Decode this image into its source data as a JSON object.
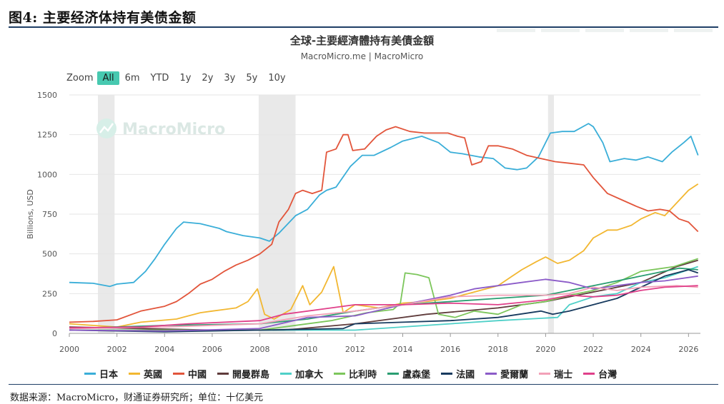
{
  "figure": {
    "title": "图4: 主要经济体持有美债金额",
    "source": "数据来源：MacroMicro，财通证券研究所；单位：十亿美元"
  },
  "chart_header": {
    "title": "全球-主要經濟體持有美債金額",
    "subtitle": "MacroMicro.me | MacroMicro",
    "watermark": "MacroMicro"
  },
  "zoom": {
    "label": "Zoom",
    "options": [
      "All",
      "6m",
      "YTD",
      "1y",
      "2y",
      "3y",
      "5y",
      "10y"
    ],
    "selected": "All"
  },
  "chart_data": {
    "type": "line",
    "title": "全球-主要經濟體持有美債金額",
    "xlabel": "",
    "ylabel": "Billions, USD",
    "xlim": [
      2000,
      2026.5
    ],
    "ylim": [
      0,
      1500
    ],
    "x_ticks": [
      "2000",
      "2002",
      "2004",
      "2006",
      "2008",
      "2010",
      "2012",
      "2014",
      "2016",
      "2018",
      "2020",
      "2022",
      "2024",
      "2026"
    ],
    "y_ticks": [
      "0",
      "250",
      "500",
      "750",
      "1000",
      "1250",
      "1500"
    ],
    "grid": "horizontal",
    "legend_position": "bottom",
    "recession_bands": [
      [
        2001.2,
        2001.9
      ],
      [
        2007.95,
        2009.5
      ],
      [
        2020.1,
        2020.35
      ]
    ],
    "series": [
      {
        "name": "日本",
        "color": "#3aaed8",
        "points": [
          [
            2000,
            320
          ],
          [
            2001,
            315
          ],
          [
            2001.7,
            295
          ],
          [
            2002,
            310
          ],
          [
            2002.7,
            320
          ],
          [
            2003.2,
            390
          ],
          [
            2003.6,
            470
          ],
          [
            2004,
            560
          ],
          [
            2004.5,
            660
          ],
          [
            2004.8,
            700
          ],
          [
            2005.5,
            690
          ],
          [
            2006.3,
            660
          ],
          [
            2006.6,
            640
          ],
          [
            2007.3,
            615
          ],
          [
            2008,
            600
          ],
          [
            2008.4,
            580
          ],
          [
            2008.8,
            630
          ],
          [
            2009.5,
            740
          ],
          [
            2010,
            780
          ],
          [
            2010.5,
            870
          ],
          [
            2010.8,
            900
          ],
          [
            2011.2,
            920
          ],
          [
            2011.8,
            1050
          ],
          [
            2012.3,
            1120
          ],
          [
            2012.8,
            1120
          ],
          [
            2013.5,
            1170
          ],
          [
            2014,
            1210
          ],
          [
            2014.8,
            1240
          ],
          [
            2015.5,
            1200
          ],
          [
            2016,
            1140
          ],
          [
            2016.5,
            1130
          ],
          [
            2017.2,
            1110
          ],
          [
            2017.8,
            1100
          ],
          [
            2018.3,
            1040
          ],
          [
            2018.8,
            1030
          ],
          [
            2019.2,
            1040
          ],
          [
            2019.7,
            1110
          ],
          [
            2020.2,
            1260
          ],
          [
            2020.7,
            1270
          ],
          [
            2021.2,
            1270
          ],
          [
            2021.8,
            1320
          ],
          [
            2022,
            1300
          ],
          [
            2022.4,
            1200
          ],
          [
            2022.7,
            1080
          ],
          [
            2023.3,
            1100
          ],
          [
            2023.8,
            1090
          ],
          [
            2024.3,
            1110
          ],
          [
            2024.9,
            1080
          ],
          [
            2025.3,
            1140
          ],
          [
            2025.8,
            1200
          ],
          [
            2026.1,
            1240
          ],
          [
            2026.4,
            1120
          ]
        ]
      },
      {
        "name": "英國",
        "color": "#f2b731",
        "points": [
          [
            2000,
            60
          ],
          [
            2001,
            50
          ],
          [
            2002,
            40
          ],
          [
            2003,
            70
          ],
          [
            2004.5,
            90
          ],
          [
            2005.5,
            130
          ],
          [
            2006,
            140
          ],
          [
            2006.5,
            150
          ],
          [
            2007,
            160
          ],
          [
            2007.5,
            200
          ],
          [
            2007.9,
            280
          ],
          [
            2008.2,
            120
          ],
          [
            2008.6,
            90
          ],
          [
            2009.3,
            150
          ],
          [
            2009.8,
            300
          ],
          [
            2010.1,
            180
          ],
          [
            2010.6,
            260
          ],
          [
            2011.1,
            420
          ],
          [
            2011.5,
            130
          ],
          [
            2012,
            180
          ],
          [
            2013,
            160
          ],
          [
            2014,
            190
          ],
          [
            2015,
            200
          ],
          [
            2016,
            220
          ],
          [
            2017,
            260
          ],
          [
            2018,
            300
          ],
          [
            2018.6,
            360
          ],
          [
            2019,
            400
          ],
          [
            2019.6,
            450
          ],
          [
            2020,
            480
          ],
          [
            2020.5,
            440
          ],
          [
            2021,
            460
          ],
          [
            2021.6,
            520
          ],
          [
            2022,
            600
          ],
          [
            2022.6,
            650
          ],
          [
            2023,
            650
          ],
          [
            2023.6,
            680
          ],
          [
            2024,
            720
          ],
          [
            2024.6,
            760
          ],
          [
            2025,
            740
          ],
          [
            2025.5,
            820
          ],
          [
            2026,
            900
          ],
          [
            2026.4,
            940
          ]
        ]
      },
      {
        "name": "中國",
        "color": "#e2553b",
        "points": [
          [
            2000,
            70
          ],
          [
            2001,
            75
          ],
          [
            2002,
            85
          ],
          [
            2003,
            140
          ],
          [
            2004,
            170
          ],
          [
            2004.5,
            200
          ],
          [
            2005,
            250
          ],
          [
            2005.5,
            310
          ],
          [
            2006,
            340
          ],
          [
            2006.5,
            390
          ],
          [
            2007,
            430
          ],
          [
            2007.5,
            460
          ],
          [
            2008,
            500
          ],
          [
            2008.5,
            560
          ],
          [
            2008.8,
            700
          ],
          [
            2009.2,
            780
          ],
          [
            2009.5,
            880
          ],
          [
            2009.8,
            900
          ],
          [
            2010.2,
            880
          ],
          [
            2010.6,
            900
          ],
          [
            2010.8,
            1140
          ],
          [
            2011.2,
            1160
          ],
          [
            2011.5,
            1250
          ],
          [
            2011.7,
            1250
          ],
          [
            2011.9,
            1150
          ],
          [
            2012.4,
            1160
          ],
          [
            2012.9,
            1240
          ],
          [
            2013.3,
            1280
          ],
          [
            2013.7,
            1300
          ],
          [
            2014.3,
            1270
          ],
          [
            2014.9,
            1260
          ],
          [
            2015.4,
            1260
          ],
          [
            2015.9,
            1260
          ],
          [
            2016.3,
            1240
          ],
          [
            2016.6,
            1230
          ],
          [
            2016.9,
            1060
          ],
          [
            2017.3,
            1080
          ],
          [
            2017.6,
            1180
          ],
          [
            2018,
            1180
          ],
          [
            2018.6,
            1160
          ],
          [
            2019.2,
            1120
          ],
          [
            2019.8,
            1100
          ],
          [
            2020.4,
            1080
          ],
          [
            2021,
            1070
          ],
          [
            2021.6,
            1060
          ],
          [
            2022,
            980
          ],
          [
            2022.6,
            880
          ],
          [
            2023.2,
            840
          ],
          [
            2023.8,
            800
          ],
          [
            2024.3,
            770
          ],
          [
            2024.8,
            780
          ],
          [
            2025.2,
            770
          ],
          [
            2025.6,
            720
          ],
          [
            2026,
            700
          ],
          [
            2026.4,
            640
          ]
        ]
      },
      {
        "name": "開曼群島",
        "color": "#5f3b3b",
        "points": [
          [
            2000,
            40
          ],
          [
            2003,
            30
          ],
          [
            2006,
            20
          ],
          [
            2009,
            20
          ],
          [
            2012,
            60
          ],
          [
            2015,
            120
          ],
          [
            2018,
            160
          ],
          [
            2020,
            200
          ],
          [
            2022,
            260
          ],
          [
            2024,
            320
          ],
          [
            2025.5,
            420
          ],
          [
            2026.4,
            460
          ]
        ]
      },
      {
        "name": "加拿大",
        "color": "#4fd0c8",
        "points": [
          [
            2000,
            20
          ],
          [
            2004,
            20
          ],
          [
            2008,
            20
          ],
          [
            2012,
            20
          ],
          [
            2016,
            60
          ],
          [
            2018,
            80
          ],
          [
            2020.5,
            100
          ],
          [
            2021,
            180
          ],
          [
            2022,
            230
          ],
          [
            2023,
            250
          ],
          [
            2024,
            320
          ],
          [
            2025,
            350
          ],
          [
            2026.4,
            420
          ]
        ]
      },
      {
        "name": "比利時",
        "color": "#7cc65b",
        "points": [
          [
            2000,
            20
          ],
          [
            2004,
            20
          ],
          [
            2008,
            20
          ],
          [
            2011,
            80
          ],
          [
            2012.5,
            130
          ],
          [
            2013.6,
            150
          ],
          [
            2013.9,
            190
          ],
          [
            2014.1,
            380
          ],
          [
            2014.6,
            370
          ],
          [
            2015.1,
            350
          ],
          [
            2015.5,
            120
          ],
          [
            2016.2,
            100
          ],
          [
            2017,
            140
          ],
          [
            2018,
            120
          ],
          [
            2019,
            180
          ],
          [
            2020,
            200
          ],
          [
            2021,
            240
          ],
          [
            2022,
            270
          ],
          [
            2023,
            320
          ],
          [
            2024,
            390
          ],
          [
            2025.4,
            420
          ],
          [
            2026.4,
            470
          ]
        ]
      },
      {
        "name": "盧森堡",
        "color": "#2a9d71",
        "points": [
          [
            2000,
            30
          ],
          [
            2004,
            50
          ],
          [
            2008,
            60
          ],
          [
            2010,
            90
          ],
          [
            2012,
            140
          ],
          [
            2014,
            180
          ],
          [
            2016,
            200
          ],
          [
            2018,
            220
          ],
          [
            2020,
            240
          ],
          [
            2022,
            300
          ],
          [
            2024,
            360
          ],
          [
            2025.6,
            410
          ],
          [
            2026.4,
            400
          ]
        ]
      },
      {
        "name": "法國",
        "color": "#173a5e",
        "points": [
          [
            2000,
            20
          ],
          [
            2004,
            10
          ],
          [
            2008,
            20
          ],
          [
            2011.5,
            30
          ],
          [
            2012,
            60
          ],
          [
            2014,
            70
          ],
          [
            2016,
            80
          ],
          [
            2018,
            100
          ],
          [
            2019.8,
            140
          ],
          [
            2020.3,
            120
          ],
          [
            2021,
            140
          ],
          [
            2022,
            180
          ],
          [
            2023,
            220
          ],
          [
            2024,
            290
          ],
          [
            2025,
            360
          ],
          [
            2026,
            400
          ],
          [
            2026.4,
            380
          ]
        ]
      },
      {
        "name": "愛爾蘭",
        "color": "#8b5bc8",
        "points": [
          [
            2000,
            20
          ],
          [
            2004,
            15
          ],
          [
            2008,
            30
          ],
          [
            2010,
            100
          ],
          [
            2012,
            110
          ],
          [
            2014,
            180
          ],
          [
            2016,
            240
          ],
          [
            2017,
            280
          ],
          [
            2018,
            300
          ],
          [
            2019,
            320
          ],
          [
            2020,
            340
          ],
          [
            2021,
            320
          ],
          [
            2022,
            280
          ],
          [
            2023,
            300
          ],
          [
            2024,
            320
          ],
          [
            2025,
            330
          ],
          [
            2026.4,
            360
          ]
        ]
      },
      {
        "name": "瑞士",
        "color": "#f2a1b8",
        "points": [
          [
            2000,
            30
          ],
          [
            2004,
            40
          ],
          [
            2008,
            60
          ],
          [
            2010,
            110
          ],
          [
            2012,
            140
          ],
          [
            2014,
            180
          ],
          [
            2016,
            230
          ],
          [
            2018,
            240
          ],
          [
            2020,
            240
          ],
          [
            2021,
            250
          ],
          [
            2022,
            290
          ],
          [
            2023,
            270
          ],
          [
            2024,
            290
          ],
          [
            2025.5,
            300
          ],
          [
            2026.4,
            290
          ]
        ]
      },
      {
        "name": "台灣",
        "color": "#e0408a",
        "points": [
          [
            2000,
            35
          ],
          [
            2003,
            40
          ],
          [
            2005,
            60
          ],
          [
            2008,
            80
          ],
          [
            2009,
            120
          ],
          [
            2011,
            160
          ],
          [
            2012,
            180
          ],
          [
            2014,
            180
          ],
          [
            2016,
            190
          ],
          [
            2018,
            180
          ],
          [
            2020,
            210
          ],
          [
            2021,
            240
          ],
          [
            2022,
            230
          ],
          [
            2023,
            240
          ],
          [
            2024,
            270
          ],
          [
            2025,
            290
          ],
          [
            2026.4,
            300
          ]
        ]
      }
    ]
  }
}
